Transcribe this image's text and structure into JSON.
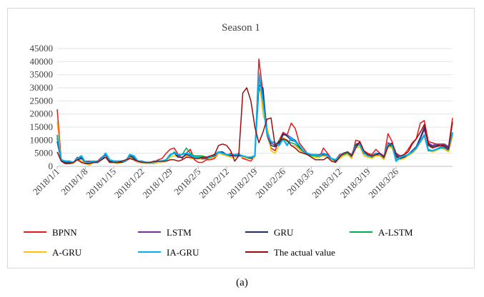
{
  "caption": "(a)",
  "chart_data": {
    "type": "line",
    "title": "Season 1",
    "xlabel": "",
    "ylabel": "",
    "ylim": [
      0,
      45000
    ],
    "yticks": [
      0,
      5000,
      10000,
      15000,
      20000,
      25000,
      30000,
      35000,
      40000,
      45000
    ],
    "grid": "horizontal",
    "legend_position": "bottom",
    "x_tick_labels": [
      "2018/1/1",
      "2018/1/8",
      "2018/1/15",
      "2018/1/22",
      "2018/1/29",
      "2018/2/5",
      "2018/2/12",
      "2018/2/19",
      "2018/2/26",
      "2018/3/5",
      "2018/3/12",
      "2018/3/19",
      "2018/3/26"
    ],
    "x_start": "2018/1/1",
    "x_end": "2018/4/1",
    "series": [
      {
        "name": "BPNN",
        "color": "#e8191b",
        "values": [
          21800,
          2500,
          2000,
          1500,
          1500,
          3500,
          1500,
          2000,
          2000,
          2000,
          2000,
          3500,
          4500,
          1500,
          1500,
          1500,
          1500,
          2000,
          3000,
          2500,
          1500,
          1500,
          1500,
          1000,
          1500,
          2500,
          3000,
          5000,
          6500,
          7000,
          4500,
          3000,
          5000,
          6500,
          2500,
          1500,
          1500,
          2500,
          2500,
          3000,
          5000,
          5000,
          4000,
          5000,
          4000,
          5000,
          3000,
          2500,
          2000,
          4000,
          41000,
          28000,
          12000,
          7000,
          6000,
          10000,
          13000,
          12000,
          16500,
          14500,
          9000,
          7000,
          5000,
          4000,
          4000,
          3500,
          7000,
          5000,
          3000,
          2500,
          4500,
          5000,
          5000,
          3000,
          10000,
          9500,
          6000,
          5000,
          4500,
          6500,
          5000,
          3500,
          12500,
          9500,
          3500,
          3500,
          4500,
          6500,
          9000,
          10500,
          16500,
          17500,
          9500,
          9000,
          8500,
          8000,
          8500,
          7500,
          18500
        ]
      },
      {
        "name": "LSTM",
        "color": "#7030a0",
        "values": [
          10500,
          2500,
          2000,
          2000,
          1500,
          3000,
          3500,
          1500,
          1500,
          1500,
          1500,
          3000,
          4500,
          2500,
          2000,
          2000,
          2000,
          2000,
          4000,
          3500,
          2000,
          2000,
          1500,
          1500,
          1500,
          2000,
          2000,
          2500,
          4500,
          5000,
          4000,
          4500,
          5000,
          4500,
          3500,
          3500,
          3500,
          3500,
          3500,
          4000,
          5500,
          5000,
          4500,
          4000,
          4000,
          4500,
          4000,
          3500,
          3500,
          4000,
          35000,
          28000,
          14000,
          9000,
          8000,
          9000,
          12000,
          12000,
          11000,
          10000,
          8000,
          6000,
          5000,
          4500,
          4500,
          4500,
          5000,
          4500,
          3000,
          2500,
          4000,
          5000,
          5500,
          4500,
          8500,
          9000,
          5500,
          4500,
          4000,
          5000,
          5000,
          4000,
          9000,
          8500,
          4500,
          3500,
          4000,
          4500,
          6000,
          7500,
          10500,
          14000,
          9000,
          8000,
          8500,
          8500,
          8500,
          7500,
          12500
        ]
      },
      {
        "name": "GRU",
        "color": "#1f2d6b",
        "values": [
          9500,
          2000,
          1500,
          1500,
          1500,
          2500,
          3000,
          1500,
          1500,
          1500,
          1500,
          2500,
          4500,
          2000,
          1500,
          1500,
          1500,
          2000,
          4000,
          3000,
          2000,
          1500,
          1500,
          1500,
          1500,
          2000,
          2000,
          2500,
          4500,
          5000,
          3500,
          3500,
          4500,
          4000,
          3500,
          3500,
          3000,
          3000,
          3500,
          4000,
          5500,
          5500,
          4500,
          4000,
          4000,
          4000,
          4000,
          3500,
          3000,
          4000,
          31000,
          30000,
          13000,
          8000,
          7500,
          8500,
          12500,
          11500,
          10000,
          9500,
          7500,
          6000,
          4500,
          4500,
          4500,
          4000,
          4500,
          4000,
          3000,
          2000,
          3500,
          5000,
          5500,
          4000,
          8000,
          9000,
          5000,
          4000,
          4000,
          4500,
          4500,
          3500,
          8500,
          8000,
          4000,
          3000,
          3500,
          4500,
          6000,
          7500,
          11000,
          15000,
          8500,
          7500,
          8000,
          8000,
          8000,
          7000,
          13000
        ]
      },
      {
        "name": "A-LSTM",
        "color": "#00b050",
        "values": [
          11000,
          2500,
          2000,
          1500,
          1500,
          3000,
          3000,
          1500,
          1500,
          1500,
          1500,
          3000,
          4500,
          2000,
          2000,
          1500,
          1500,
          2000,
          4500,
          3000,
          2000,
          1500,
          1500,
          1500,
          1500,
          2000,
          2000,
          2500,
          4000,
          5500,
          4500,
          4500,
          7000,
          5000,
          4000,
          4000,
          4000,
          3500,
          4000,
          4500,
          5500,
          5000,
          4500,
          4000,
          4000,
          4500,
          4000,
          3500,
          3500,
          4000,
          30000,
          26000,
          15000,
          8000,
          7500,
          10000,
          11000,
          9500,
          9000,
          8500,
          7000,
          5500,
          5000,
          4000,
          4000,
          3500,
          4500,
          4000,
          3000,
          2500,
          4000,
          4500,
          5000,
          3500,
          8500,
          8000,
          5000,
          4000,
          3500,
          4500,
          4000,
          3000,
          8000,
          7500,
          3000,
          3000,
          3500,
          4500,
          5500,
          7000,
          9500,
          12000,
          6500,
          6000,
          6500,
          7500,
          7000,
          6000,
          12000
        ]
      },
      {
        "name": "A-GRU",
        "color": "#ffc000",
        "values": [
          17000,
          2000,
          1500,
          1000,
          1000,
          3000,
          2000,
          1000,
          500,
          1500,
          1500,
          2500,
          3500,
          1500,
          1500,
          1000,
          1500,
          2000,
          3500,
          3000,
          1500,
          1500,
          1000,
          1000,
          1000,
          1500,
          1500,
          2000,
          3500,
          4000,
          3500,
          3500,
          4000,
          3000,
          3000,
          3000,
          2500,
          3000,
          3000,
          3500,
          5000,
          4500,
          4000,
          3500,
          3500,
          4000,
          3500,
          3000,
          3000,
          3500,
          34500,
          20000,
          15000,
          6000,
          5000,
          8000,
          11000,
          10000,
          8000,
          8000,
          6500,
          5000,
          4500,
          3500,
          3500,
          3500,
          4000,
          3500,
          2500,
          2000,
          3000,
          4000,
          4500,
          3000,
          7000,
          7500,
          4000,
          3500,
          3000,
          4000,
          4000,
          2500,
          7500,
          7000,
          2500,
          2500,
          3000,
          4000,
          5000,
          6500,
          9000,
          11500,
          6000,
          5500,
          6000,
          7000,
          6500,
          5500,
          11500
        ]
      },
      {
        "name": "IA-GRU",
        "color": "#00b0f0",
        "values": [
          12000,
          2500,
          2000,
          2000,
          1500,
          3000,
          4000,
          1500,
          1500,
          2000,
          1500,
          3000,
          5000,
          2500,
          2000,
          2000,
          2000,
          2000,
          4500,
          4000,
          2000,
          2000,
          1500,
          1500,
          1500,
          2000,
          2000,
          2500,
          4500,
          5000,
          4500,
          4500,
          5000,
          4500,
          3500,
          3500,
          3500,
          3500,
          3500,
          4500,
          5500,
          5000,
          4500,
          4500,
          4500,
          4500,
          4000,
          3500,
          3500,
          4000,
          35500,
          25000,
          12500,
          9500,
          9000,
          8000,
          10500,
          8000,
          11000,
          9500,
          8000,
          6000,
          5000,
          4500,
          4500,
          4000,
          5000,
          4000,
          3000,
          2500,
          4000,
          5000,
          5500,
          4000,
          7500,
          8500,
          5000,
          4000,
          4000,
          5000,
          4500,
          3500,
          8500,
          8500,
          2000,
          3500,
          4000,
          4500,
          5500,
          7000,
          9500,
          12000,
          6000,
          6000,
          6500,
          7000,
          7000,
          6500,
          13000
        ]
      },
      {
        "name": "The actual value",
        "color": "#9c0c0c",
        "values": [
          5500,
          2000,
          1000,
          1000,
          1500,
          2500,
          1500,
          1000,
          1000,
          1500,
          1500,
          2500,
          3500,
          1500,
          1500,
          1500,
          2000,
          2500,
          3000,
          2500,
          2000,
          1500,
          1500,
          1500,
          2000,
          2000,
          2000,
          2000,
          2500,
          2500,
          2000,
          2500,
          3500,
          3500,
          3000,
          3000,
          3500,
          3500,
          4000,
          4500,
          8000,
          8500,
          8000,
          6000,
          2000,
          4000,
          28000,
          30000,
          25000,
          15000,
          9000,
          13000,
          18000,
          18500,
          8000,
          9500,
          10500,
          10000,
          8000,
          7000,
          5500,
          5000,
          4500,
          3500,
          2500,
          2500,
          2500,
          3500,
          2000,
          1500,
          3500,
          5000,
          5500,
          4000,
          7000,
          9500,
          6000,
          4500,
          4000,
          4500,
          5000,
          3500,
          7500,
          9000,
          5000,
          4000,
          4500,
          5500,
          8500,
          10500,
          13000,
          16000,
          8000,
          7000,
          7500,
          8000,
          7500,
          6500,
          17000
        ]
      }
    ]
  }
}
